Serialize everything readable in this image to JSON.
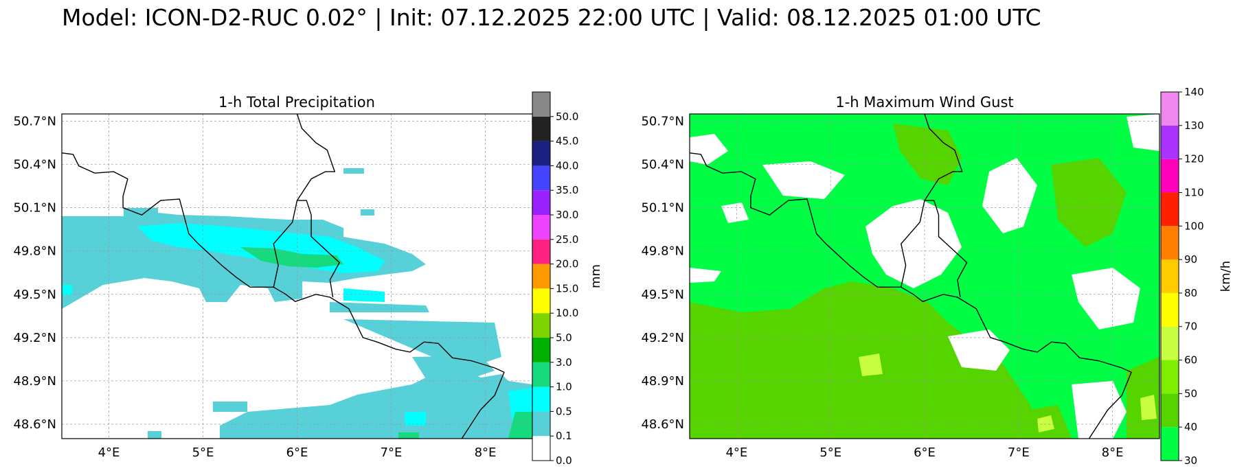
{
  "figure": {
    "title": "Model: ICON-D2-RUC 0.02° | Init: 07.12.2025 22:00 UTC | Valid: 08.12.2025 01:00 UTC"
  },
  "map_extent": {
    "lon": [
      3.5,
      8.5
    ],
    "lat": [
      48.5,
      50.75
    ]
  },
  "lat_ticks": [
    {
      "value": 50.7,
      "label": "50.7°N"
    },
    {
      "value": 50.4,
      "label": "50.4°N"
    },
    {
      "value": 50.1,
      "label": "50.1°N"
    },
    {
      "value": 49.8,
      "label": "49.8°N"
    },
    {
      "value": 49.5,
      "label": "49.5°N"
    },
    {
      "value": 49.2,
      "label": "49.2°N"
    },
    {
      "value": 48.9,
      "label": "48.9°N"
    },
    {
      "value": 48.6,
      "label": "48.6°N"
    }
  ],
  "lon_ticks": [
    {
      "value": 4,
      "label": "4°E"
    },
    {
      "value": 5,
      "label": "5°E"
    },
    {
      "value": 6,
      "label": "6°E"
    },
    {
      "value": 7,
      "label": "7°E"
    },
    {
      "value": 8,
      "label": "8°E"
    }
  ],
  "panels": [
    {
      "title": "1-h Total Precipitation",
      "colorbar": {
        "unit": "mm",
        "levels": [
          "0.0",
          "0.1",
          "0.5",
          "1.0",
          "3.0",
          "5.0",
          "10.0",
          "15.0",
          "20.0",
          "25.0",
          "30.0",
          "35.0",
          "40.0",
          "45.0",
          "50.0"
        ],
        "colors": [
          "#ffffff",
          "#57d0d8",
          "#00ffff",
          "#17d97d",
          "#00b000",
          "#7fd400",
          "#ffff00",
          "#ff9900",
          "#ff2280",
          "#ee44ff",
          "#9922ff",
          "#4444ff",
          "#1a2180",
          "#222222",
          "#888888"
        ]
      }
    },
    {
      "title": "1-h Maximum Wind Gust",
      "colorbar": {
        "unit": "km/h",
        "levels": [
          "30",
          "40",
          "50",
          "60",
          "70",
          "80",
          "90",
          "100",
          "110",
          "120",
          "130",
          "140"
        ],
        "colors": [
          "#00ff44",
          "#55d400",
          "#80ee00",
          "#c8ff40",
          "#ffff00",
          "#ffcc00",
          "#ff8000",
          "#ff2000",
          "#ff00bb",
          "#aa33ff",
          "#ee88ee"
        ]
      }
    }
  ]
}
